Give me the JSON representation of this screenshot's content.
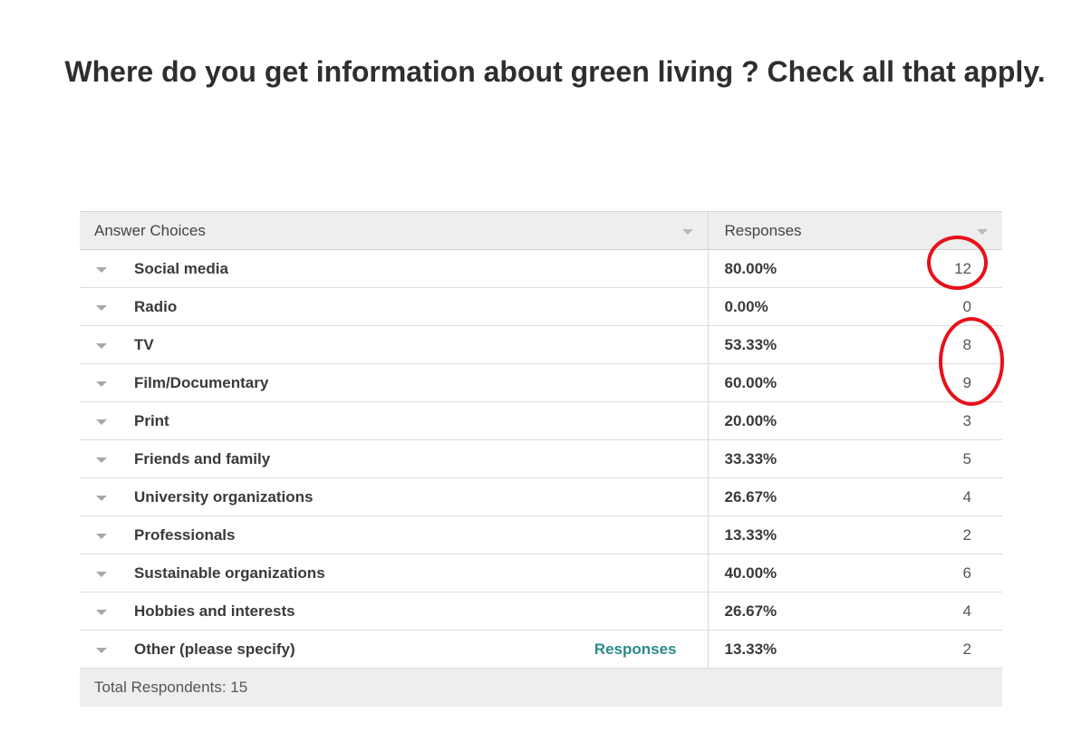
{
  "question": {
    "title": "Where do you get information about green living ? Check all that apply."
  },
  "table": {
    "headers": {
      "choices": "Answer Choices",
      "responses": "Responses"
    },
    "rows": [
      {
        "label": "Social media",
        "percent": "80.00%",
        "count": "12"
      },
      {
        "label": "Radio",
        "percent": "0.00%",
        "count": "0"
      },
      {
        "label": "TV",
        "percent": "53.33%",
        "count": "8"
      },
      {
        "label": "Film/Documentary",
        "percent": "60.00%",
        "count": "9"
      },
      {
        "label": "Print",
        "percent": "20.00%",
        "count": "3"
      },
      {
        "label": "Friends and family",
        "percent": "33.33%",
        "count": "5"
      },
      {
        "label": "University organizations",
        "percent": "26.67%",
        "count": "4"
      },
      {
        "label": "Professionals",
        "percent": "13.33%",
        "count": "2"
      },
      {
        "label": "Sustainable organizations",
        "percent": "40.00%",
        "count": "6"
      },
      {
        "label": "Hobbies and interests",
        "percent": "26.67%",
        "count": "4"
      },
      {
        "label": "Other (please specify)",
        "percent": "13.33%",
        "count": "2",
        "link": "Responses"
      }
    ],
    "footer": {
      "total": "Total Respondents: 15"
    }
  },
  "colors": {
    "annotation": "#e8101a",
    "link": "#2a8a8a",
    "header_bg": "#eeeeee"
  }
}
